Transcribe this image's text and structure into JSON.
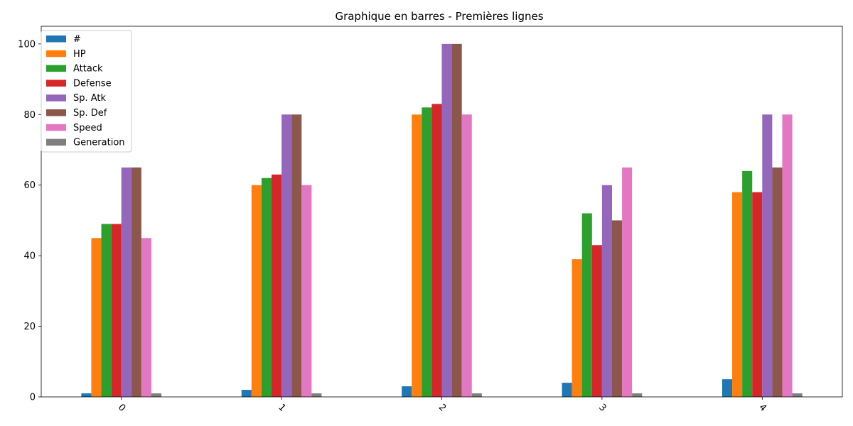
{
  "chart_data": {
    "type": "bar",
    "title": "Graphique en barres - Premières lignes",
    "xlabel": "",
    "ylabel": "",
    "categories": [
      "0",
      "1",
      "2",
      "3",
      "4"
    ],
    "ylim": [
      0,
      105
    ],
    "yticks": [
      0,
      20,
      40,
      60,
      80,
      100
    ],
    "grid": false,
    "legend_position": "top-left",
    "series": [
      {
        "name": "#",
        "color": "#1f77b4",
        "values": [
          1,
          2,
          3,
          4,
          5
        ]
      },
      {
        "name": "HP",
        "color": "#ff7f0e",
        "values": [
          45,
          60,
          80,
          39,
          58
        ]
      },
      {
        "name": "Attack",
        "color": "#2ca02c",
        "values": [
          49,
          62,
          82,
          52,
          64
        ]
      },
      {
        "name": "Defense",
        "color": "#d62728",
        "values": [
          49,
          63,
          83,
          43,
          58
        ]
      },
      {
        "name": "Sp. Atk",
        "color": "#9467bd",
        "values": [
          65,
          80,
          100,
          60,
          80
        ]
      },
      {
        "name": "Sp. Def",
        "color": "#8c564b",
        "values": [
          65,
          80,
          100,
          50,
          65
        ]
      },
      {
        "name": "Speed",
        "color": "#e377c2",
        "values": [
          45,
          60,
          80,
          65,
          80
        ]
      },
      {
        "name": "Generation",
        "color": "#7f7f7f",
        "values": [
          1,
          1,
          1,
          1,
          1
        ]
      }
    ]
  }
}
